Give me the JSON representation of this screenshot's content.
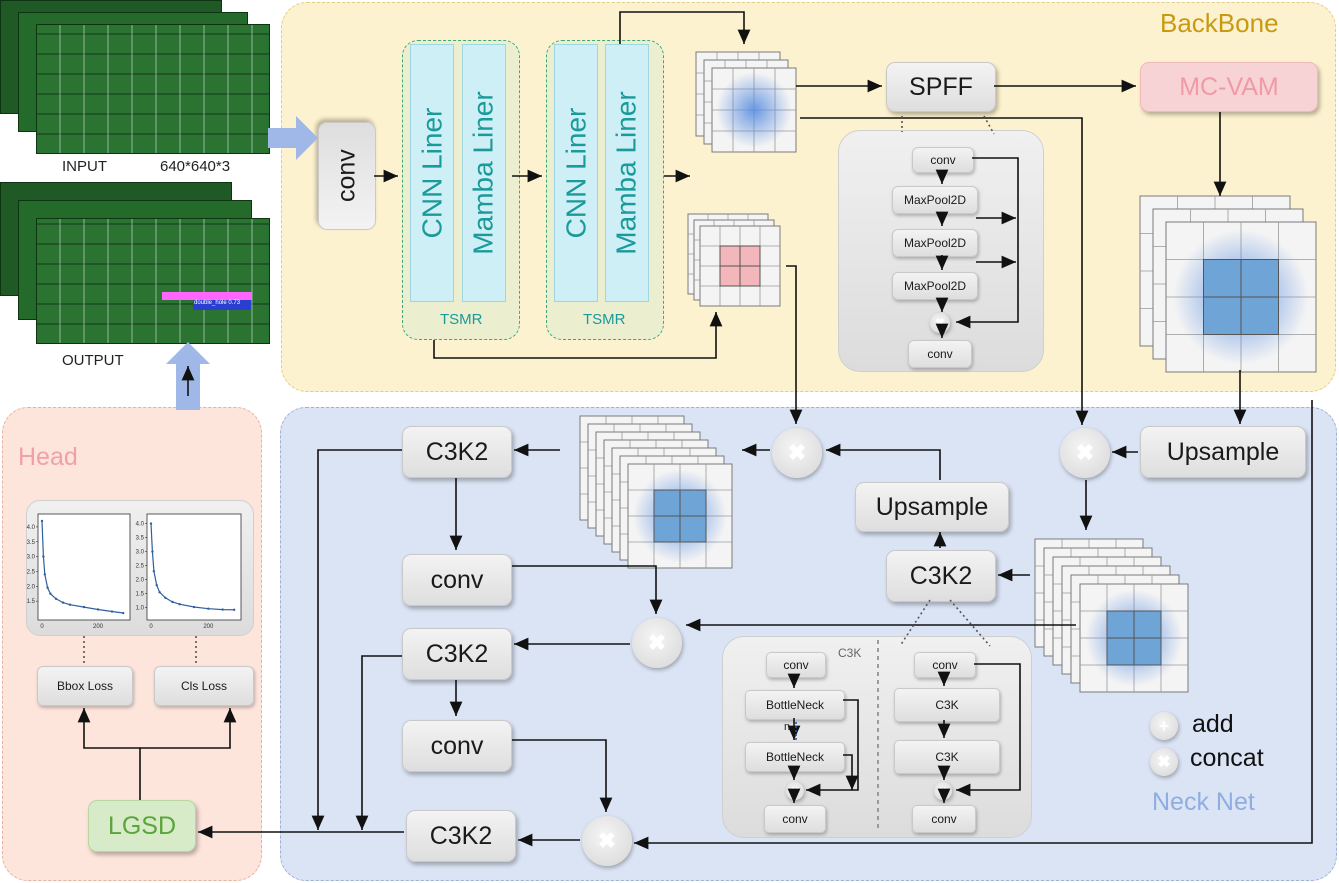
{
  "backbone": {
    "title": "BackBone",
    "conv": "conv",
    "cnn_liner": "CNN Liner",
    "mamba_liner": "Mamba Liner",
    "tsmr": "TSMR",
    "spff": "SPFF",
    "mcvam": "MC-VAM",
    "spff_detail": [
      "conv",
      "MaxPool2D",
      "MaxPool2D",
      "MaxPool2D",
      "conv"
    ]
  },
  "io": {
    "input_label": "INPUT",
    "input_size": "640*640*3",
    "output_label": "OUTPUT",
    "detection_text": "double_hole 0.73"
  },
  "neck": {
    "title": "Neck Net",
    "upsample": "Upsample",
    "c3k2": "C3K2",
    "conv": "conv",
    "c3k_title": "C3K",
    "c3k_left": [
      "conv",
      "BottleNeck",
      "BottleNeck",
      "conv"
    ],
    "c3k_right": [
      "conv",
      "C3K",
      "C3K",
      "conv"
    ],
    "n_label": "n"
  },
  "legend": {
    "add": "add",
    "concat": "concat"
  },
  "head": {
    "title": "Head",
    "lgsd": "LGSD",
    "bbox_loss": "Bbox Loss",
    "cls_loss": "Cls Loss"
  },
  "chart_data": [
    {
      "type": "line",
      "title": "",
      "xlabel": "",
      "ylabel": "",
      "x_ticks": [
        "0",
        "200"
      ],
      "y_ticks": [
        "1.5",
        "2.0",
        "2.5",
        "3.0",
        "3.5",
        "4.0"
      ],
      "ylim": [
        1.0,
        4.3
      ],
      "series": [
        {
          "x": [
            0,
            5,
            10,
            20,
            30,
            50,
            75,
            100,
            150,
            200,
            250,
            290
          ],
          "y": [
            4.2,
            3.0,
            2.4,
            1.95,
            1.75,
            1.58,
            1.45,
            1.38,
            1.3,
            1.22,
            1.15,
            1.1
          ]
        }
      ]
    },
    {
      "type": "line",
      "title": "",
      "xlabel": "",
      "ylabel": "",
      "x_ticks": [
        "0",
        "200"
      ],
      "y_ticks": [
        "1.0",
        "1.5",
        "2.0",
        "2.5",
        "3.0",
        "3.5",
        "4.0"
      ],
      "ylim": [
        0.7,
        4.2
      ],
      "series": [
        {
          "x": [
            0,
            5,
            10,
            20,
            30,
            50,
            75,
            100,
            150,
            200,
            250,
            290
          ],
          "y": [
            4.0,
            3.0,
            2.3,
            1.8,
            1.55,
            1.35,
            1.2,
            1.12,
            1.02,
            0.96,
            0.93,
            0.92
          ]
        }
      ]
    }
  ],
  "colors": {
    "backbone_bg": "#fdf2cf",
    "neck_bg": "#dbe4f5",
    "head_bg": "#fde5dc",
    "mcvam_bg": "#f8d3d6",
    "lgsd_bg": "#d7ebc9",
    "accent_arrow": "#9fb8e8"
  }
}
